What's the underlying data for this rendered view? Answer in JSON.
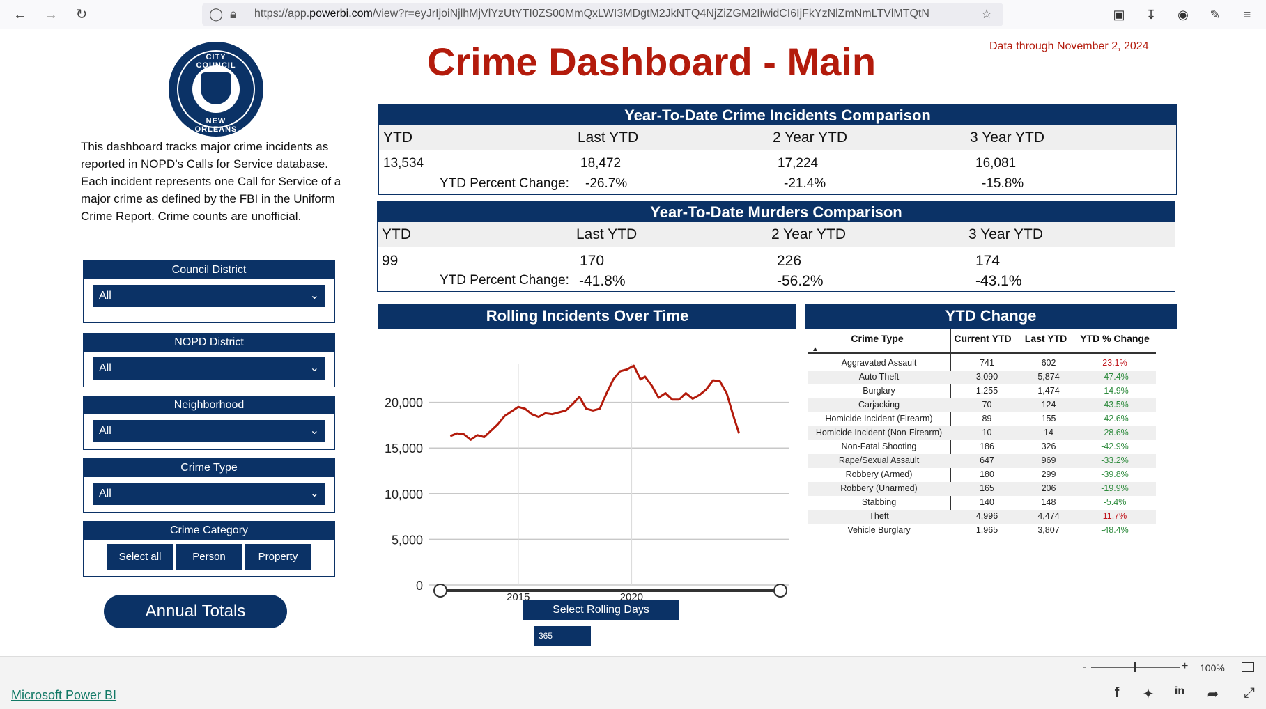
{
  "browser": {
    "url_prefix": "https://app.",
    "url_domain": "powerbi.com",
    "url_rest": "/view?r=eyJrIjoiNjlhMjVlYzUtYTI0ZS00MmQxLWI3MDgtM2JkNTQ4NjZiZGM2IiwidCI6IjFkYzNlZmNmLTVlMTQtN"
  },
  "seal": {
    "top_text": "CITY COUNCIL",
    "bottom_text": "NEW ORLEANS"
  },
  "description": "This dashboard tracks major crime incidents as reported in NOPD’s Calls for Service database. Each incident represents one Call for Service of a major crime as defined by the FBI in the Uniform Crime Report. Crime counts are unofficial.",
  "slicers": {
    "council_district": {
      "label": "Council District",
      "value": "All"
    },
    "nopd_district": {
      "label": "NOPD District",
      "value": "All"
    },
    "neighborhood": {
      "label": "Neighborhood",
      "value": "All"
    },
    "crime_type": {
      "label": "Crime Type",
      "value": "All"
    },
    "crime_category": {
      "label": "Crime Category",
      "buttons": [
        "Select all",
        "Person",
        "Property"
      ]
    }
  },
  "annual_totals_label": "Annual Totals",
  "title": "Crime Dashboard - Main",
  "data_through": "Data through November 2, 2024",
  "incidents_cmp": {
    "title": "Year-To-Date Crime Incidents Comparison",
    "headers": [
      "YTD",
      "Last YTD",
      "2 Year YTD",
      "3 Year YTD"
    ],
    "values": [
      "13,534",
      "18,472",
      "17,224",
      "16,081"
    ],
    "pct_label": "YTD Percent Change:",
    "pcts": [
      "-26.7%",
      "-21.4%",
      "-15.8%"
    ]
  },
  "murders_cmp": {
    "title": "Year-To-Date Murders Comparison",
    "headers": [
      "YTD",
      "Last YTD",
      "2 Year YTD",
      "3 Year YTD"
    ],
    "values": [
      "99",
      "170",
      "226",
      "174"
    ],
    "pct_label": "YTD Percent Change:",
    "pcts": [
      "-41.8%",
      "-56.2%",
      "-43.1%"
    ]
  },
  "rolling": {
    "title": "Rolling Incidents Over Time",
    "select_label": "Select Rolling Days",
    "select_value": "365"
  },
  "chart_data": {
    "type": "line",
    "title": "Rolling Incidents Over Time",
    "xlabel": "",
    "ylabel": "",
    "x_ticks": [
      "2015",
      "2020"
    ],
    "y_ticks": [
      "0",
      "5,000",
      "10,000",
      "15,000",
      "20,000"
    ],
    "ylim": [
      0,
      25000
    ],
    "xlim": [
      2011.5,
      2024.85
    ],
    "grid": true,
    "color": "#b31b0c",
    "x": [
      2012.0,
      2012.3,
      2012.6,
      2012.9,
      2013.2,
      2013.5,
      2013.8,
      2014.1,
      2014.4,
      2014.7,
      2015.0,
      2015.3,
      2015.6,
      2015.9,
      2016.2,
      2016.5,
      2016.8,
      2017.1,
      2017.4,
      2017.7,
      2018.0,
      2018.3,
      2018.6,
      2018.9,
      2019.2,
      2019.5,
      2019.8,
      2020.1,
      2020.4,
      2020.6,
      2020.9,
      2021.2,
      2021.5,
      2021.8,
      2022.1,
      2022.4,
      2022.7,
      2023.0,
      2023.3,
      2023.6,
      2023.9,
      2024.2,
      2024.5,
      2024.75
    ],
    "values": [
      16300,
      16600,
      16500,
      15900,
      16400,
      16200,
      16900,
      17600,
      18500,
      19000,
      19500,
      19300,
      18700,
      18400,
      18800,
      18700,
      18900,
      19100,
      19800,
      20600,
      19300,
      19100,
      19300,
      21000,
      22500,
      23400,
      23600,
      24000,
      22500,
      22800,
      21800,
      20500,
      21000,
      20300,
      20300,
      21000,
      20400,
      20800,
      21400,
      22400,
      22300,
      21000,
      18500,
      16600
    ]
  },
  "ytd_change": {
    "title": "YTD Change",
    "headers": [
      "Crime Type",
      "Current YTD",
      "Last YTD",
      "YTD % Change"
    ],
    "sort_icon": "sort-up-icon",
    "rows": [
      {
        "type": "Aggravated Assault",
        "current": "741",
        "last": "602",
        "pct": "23.1%",
        "dir": "up"
      },
      {
        "type": "Auto Theft",
        "current": "3,090",
        "last": "5,874",
        "pct": "-47.4%",
        "dir": "down"
      },
      {
        "type": "Burglary",
        "current": "1,255",
        "last": "1,474",
        "pct": "-14.9%",
        "dir": "down"
      },
      {
        "type": "Carjacking",
        "current": "70",
        "last": "124",
        "pct": "-43.5%",
        "dir": "down"
      },
      {
        "type": "Homicide Incident (Firearm)",
        "current": "89",
        "last": "155",
        "pct": "-42.6%",
        "dir": "down"
      },
      {
        "type": "Homicide Incident (Non-Firearm)",
        "current": "10",
        "last": "14",
        "pct": "-28.6%",
        "dir": "down"
      },
      {
        "type": "Non-Fatal Shooting",
        "current": "186",
        "last": "326",
        "pct": "-42.9%",
        "dir": "down"
      },
      {
        "type": "Rape/Sexual Assault",
        "current": "647",
        "last": "969",
        "pct": "-33.2%",
        "dir": "down"
      },
      {
        "type": "Robbery (Armed)",
        "current": "180",
        "last": "299",
        "pct": "-39.8%",
        "dir": "down"
      },
      {
        "type": "Robbery (Unarmed)",
        "current": "165",
        "last": "206",
        "pct": "-19.9%",
        "dir": "down"
      },
      {
        "type": "Stabbing",
        "current": "140",
        "last": "148",
        "pct": "-5.4%",
        "dir": "down"
      },
      {
        "type": "Theft",
        "current": "4,996",
        "last": "4,474",
        "pct": "11.7%",
        "dir": "up"
      },
      {
        "type": "Vehicle Burglary",
        "current": "1,965",
        "last": "3,807",
        "pct": "-48.4%",
        "dir": "down"
      }
    ]
  },
  "footer": {
    "brand": "Microsoft Power BI",
    "zoom": "100%"
  },
  "colors": {
    "navy": "#0b3266",
    "title_red": "#b31b0c",
    "pos": "#c0161d",
    "neg": "#2e8b3d"
  }
}
